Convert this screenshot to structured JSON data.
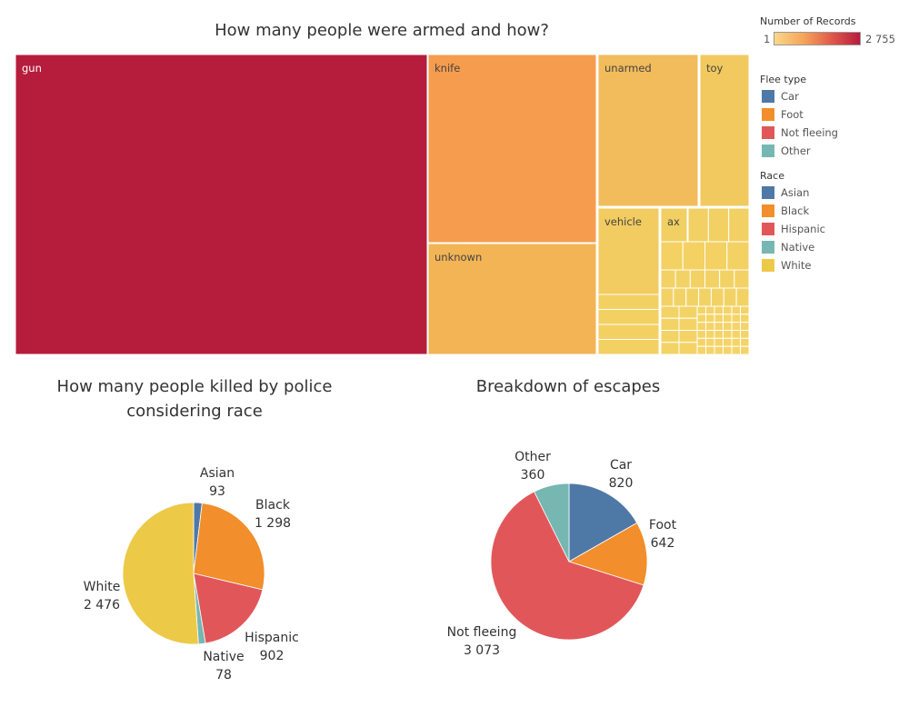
{
  "titles": {
    "treemap": "How many people were armed and how?",
    "race": "How many people killed by police considering race",
    "escape": "Breakdown of escapes"
  },
  "legend": {
    "records_title": "Number of Records",
    "records_min": "1",
    "records_max": "2 755",
    "flee_title": "Flee type",
    "flee_items": [
      {
        "label": "Car",
        "color": "#4e79a7"
      },
      {
        "label": "Foot",
        "color": "#f28e2b"
      },
      {
        "label": "Not fleeing",
        "color": "#e15759"
      },
      {
        "label": "Other",
        "color": "#76b7b2"
      }
    ],
    "race_title": "Race",
    "race_items": [
      {
        "label": "Asian",
        "color": "#4e79a7"
      },
      {
        "label": "Black",
        "color": "#f28e2b"
      },
      {
        "label": "Hispanic",
        "color": "#e15759"
      },
      {
        "label": "Native",
        "color": "#76b7b2"
      },
      {
        "label": "White",
        "color": "#edc948"
      }
    ]
  },
  "chart_data": [
    {
      "type": "treemap",
      "title": "How many people were armed and how?",
      "color_measure": "Number of Records",
      "color_range": [
        1,
        2755
      ],
      "items": [
        {
          "label": "gun",
          "value": 2755,
          "color": "#b61c3c"
        },
        {
          "label": "knife",
          "value": 890,
          "color": "#f69c4e"
        },
        {
          "label": "unknown",
          "value": 520,
          "color": "#f2b455"
        },
        {
          "label": "unarmed",
          "value": 350,
          "color": "#f2bb5b"
        },
        {
          "label": "toy",
          "value": 175,
          "color": "#f2c95f"
        },
        {
          "label": "vehicle",
          "value": 120,
          "color": "#f2cc60"
        },
        {
          "label": "ax",
          "value": 24,
          "color": "#f2cf62"
        }
      ]
    },
    {
      "type": "pie",
      "title": "How many people killed by police considering race",
      "slices": [
        {
          "label": "Asian",
          "value": 93,
          "display": "93",
          "color": "#4e79a7"
        },
        {
          "label": "Black",
          "value": 1298,
          "display": "1 298",
          "color": "#f28e2b"
        },
        {
          "label": "Hispanic",
          "value": 902,
          "display": "902",
          "color": "#e15759"
        },
        {
          "label": "Native",
          "value": 78,
          "display": "78",
          "color": "#76b7b2"
        },
        {
          "label": "White",
          "value": 2476,
          "display": "2 476",
          "color": "#edc948"
        }
      ]
    },
    {
      "type": "pie",
      "title": "Breakdown of escapes",
      "slices": [
        {
          "label": "Car",
          "value": 820,
          "display": "820",
          "color": "#4e79a7"
        },
        {
          "label": "Foot",
          "value": 642,
          "display": "642",
          "color": "#f28e2b"
        },
        {
          "label": "Not fleeing",
          "value": 3073,
          "display": "3 073",
          "color": "#e15759"
        },
        {
          "label": "Other",
          "value": 360,
          "display": "360",
          "color": "#76b7b2"
        }
      ]
    }
  ]
}
